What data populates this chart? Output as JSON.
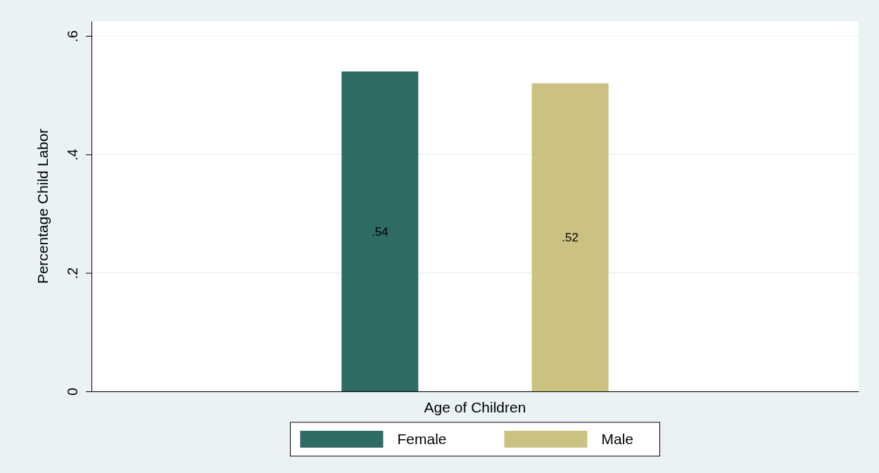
{
  "chart_data": {
    "type": "bar",
    "xlabel": "Age of Children",
    "ylabel": "Percentage Child Labor",
    "categories": [
      null
    ],
    "series": [
      {
        "name": "Female",
        "color": "#2e6b65",
        "values": [
          0.54
        ],
        "value_labels": [
          ".54"
        ]
      },
      {
        "name": "Male",
        "color": "#cbc281",
        "values": [
          0.52
        ],
        "value_labels": [
          ".52"
        ]
      }
    ],
    "ylim": [
      0,
      0.625
    ],
    "yticks": [
      0,
      {
        "value": 0.2,
        "label": ".2"
      },
      {
        "value": 0.4,
        "label": ".4"
      },
      {
        "value": 0.6,
        "label": ".6"
      }
    ],
    "grid": "y",
    "legend": "bottom"
  }
}
